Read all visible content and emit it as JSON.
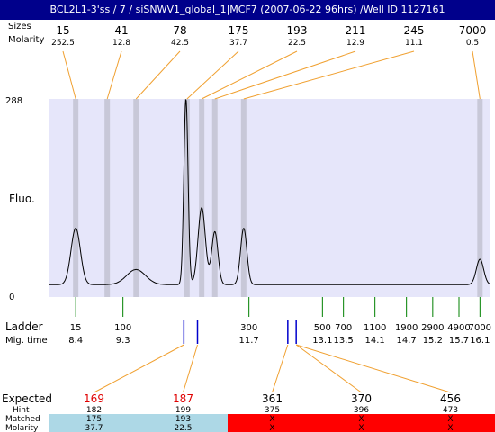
{
  "title": "BCL2L1-3'ss / 7 / siSNWV1_global_1|MCF7 (2007-06-22 96hrs) /Well ID 1127161",
  "labels": {
    "sizes": "Sizes",
    "molarity": "Molarity",
    "fluo": "Fluo.",
    "y_max": "288",
    "y_min": "0",
    "ladder": "Ladder",
    "mig_time": "Mig. time",
    "expected": "Expected",
    "hint": "Hint",
    "matched": "Matched",
    "molarity_bottom": "Molarity"
  },
  "colors": {
    "title_bg": "#00008b",
    "plot_bg": "#e6e6fa",
    "peak_band": "#c8c8d8",
    "connector": "#f0a030",
    "ladder_tick": "#008000",
    "peak_marker": "#0000cc",
    "expected_red": "#e00000",
    "matched_ok": "#add8e6",
    "matched_fail": "#ff0000"
  },
  "chart_data": {
    "type": "line",
    "ylabel": "Fluo.",
    "ylim": [
      0,
      288
    ],
    "peaks": [
      {
        "size": "15",
        "molarity": "252.5",
        "x": 8.4
      },
      {
        "size": "41",
        "molarity": "12.8",
        "x": 9.0
      },
      {
        "size": "78",
        "molarity": "42.5",
        "x": 9.55
      },
      {
        "size": "175",
        "molarity": "37.7",
        "x": 10.52
      },
      {
        "size": "193",
        "molarity": "22.5",
        "x": 10.8
      },
      {
        "size": "211",
        "molarity": "12.9",
        "x": 11.05
      },
      {
        "size": "245",
        "molarity": "11.1",
        "x": 11.6
      },
      {
        "size": "7000",
        "molarity": "0.5",
        "x": 16.1
      }
    ],
    "trace": [
      {
        "x": 8.4,
        "y": 100,
        "w": 0.09
      },
      {
        "x": 9.55,
        "y": 40,
        "w": 0.18
      },
      {
        "x": 10.5,
        "y": 288,
        "w": 0.04
      },
      {
        "x": 10.8,
        "y": 130,
        "w": 0.07
      },
      {
        "x": 11.05,
        "y": 95,
        "w": 0.06
      },
      {
        "x": 11.6,
        "y": 100,
        "w": 0.06
      },
      {
        "x": 16.1,
        "y": 55,
        "w": 0.07
      }
    ],
    "ladder": [
      {
        "size": "15",
        "time": "8.4"
      },
      {
        "size": "100",
        "time": "9.3"
      },
      {
        "size": "300",
        "time": "11.7"
      },
      {
        "size": "500",
        "time": "13.1"
      },
      {
        "size": "700",
        "time": "13.5"
      },
      {
        "size": "1100",
        "time": "14.1"
      },
      {
        "size": "1900",
        "time": "14.7"
      },
      {
        "size": "2900",
        "time": "15.2"
      },
      {
        "size": "4900",
        "time": "15.7"
      },
      {
        "size": "7000",
        "time": "16.1"
      }
    ],
    "markers": [
      10.46,
      10.72,
      12.44,
      12.6
    ],
    "expected": [
      {
        "expected": "169",
        "hint": "182",
        "matched": "175",
        "molarity": "37.7",
        "ok": true,
        "marker": 0
      },
      {
        "expected": "187",
        "hint": "199",
        "matched": "193",
        "molarity": "22.5",
        "ok": true,
        "marker": 1
      },
      {
        "expected": "361",
        "hint": "375",
        "matched": "X",
        "molarity": "X",
        "ok": false,
        "marker": 2
      },
      {
        "expected": "370",
        "hint": "396",
        "matched": "X",
        "molarity": "X",
        "ok": false,
        "marker": 3
      },
      {
        "expected": "456",
        "hint": "473",
        "matched": "X",
        "molarity": "X",
        "ok": false,
        "marker": 3
      }
    ]
  }
}
